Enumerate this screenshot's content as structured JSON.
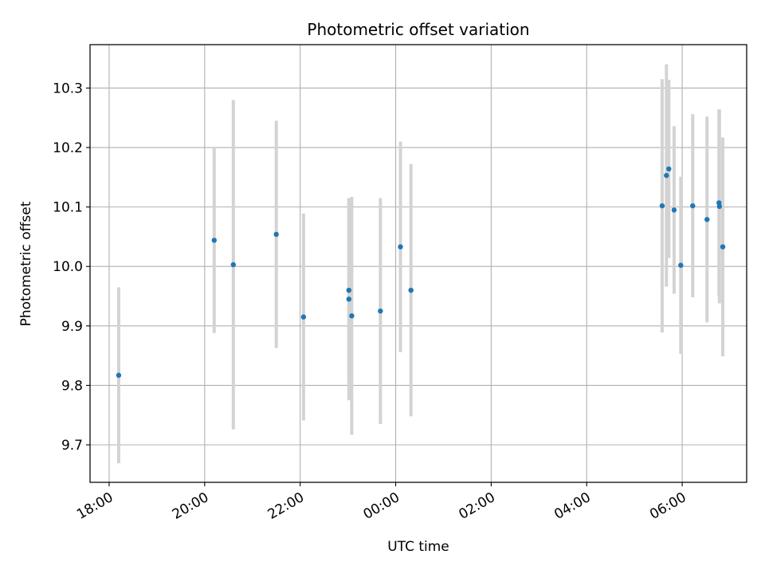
{
  "chart_data": {
    "type": "scatter",
    "title": "Photometric offset variation",
    "xlabel": "UTC time",
    "ylabel": "Photometric offset",
    "x_ticks": [
      "18:00",
      "20:00",
      "22:00",
      "00:00",
      "02:00",
      "04:00",
      "06:00"
    ],
    "x_tick_values": [
      -6,
      -4,
      -2,
      0,
      2,
      4,
      6
    ],
    "y_ticks": [
      "9.7",
      "9.8",
      "9.9",
      "10.0",
      "10.1",
      "10.2",
      "10.3"
    ],
    "y_tick_values": [
      9.7,
      9.8,
      9.9,
      10.0,
      10.1,
      10.2,
      10.3
    ],
    "xlim": [
      -6.4,
      7.35
    ],
    "ylim": [
      9.637,
      10.373
    ],
    "x_unit": "hours relative to 00:00 UTC",
    "grid": true,
    "point_color": "#1f77b4",
    "errorbar_color": "#d3d3d3",
    "points": [
      {
        "x": -5.8,
        "y": 9.817,
        "err": 0.148
      },
      {
        "x": -3.8,
        "y": 10.044,
        "err": 0.156
      },
      {
        "x": -3.4,
        "y": 10.003,
        "err": 0.277
      },
      {
        "x": -2.5,
        "y": 10.054,
        "err": 0.191
      },
      {
        "x": -1.93,
        "y": 9.915,
        "err": 0.174
      },
      {
        "x": -0.98,
        "y": 9.96,
        "err": 0.154
      },
      {
        "x": -0.98,
        "y": 9.945,
        "err": 0.17
      },
      {
        "x": -0.92,
        "y": 9.917,
        "err": 0.2
      },
      {
        "x": -0.32,
        "y": 9.925,
        "err": 0.19
      },
      {
        "x": 0.1,
        "y": 10.033,
        "err": 0.177
      },
      {
        "x": 0.32,
        "y": 9.96,
        "err": 0.212
      },
      {
        "x": 5.58,
        "y": 10.102,
        "err": 0.213
      },
      {
        "x": 5.67,
        "y": 10.153,
        "err": 0.187
      },
      {
        "x": 5.72,
        "y": 10.164,
        "err": 0.15
      },
      {
        "x": 5.83,
        "y": 10.095,
        "err": 0.141
      },
      {
        "x": 5.97,
        "y": 10.002,
        "err": 0.149
      },
      {
        "x": 6.22,
        "y": 10.102,
        "err": 0.154
      },
      {
        "x": 6.52,
        "y": 10.079,
        "err": 0.173
      },
      {
        "x": 6.77,
        "y": 10.107,
        "err": 0.157
      },
      {
        "x": 6.78,
        "y": 10.101,
        "err": 0.163
      },
      {
        "x": 6.85,
        "y": 10.033,
        "err": 0.184
      }
    ]
  }
}
